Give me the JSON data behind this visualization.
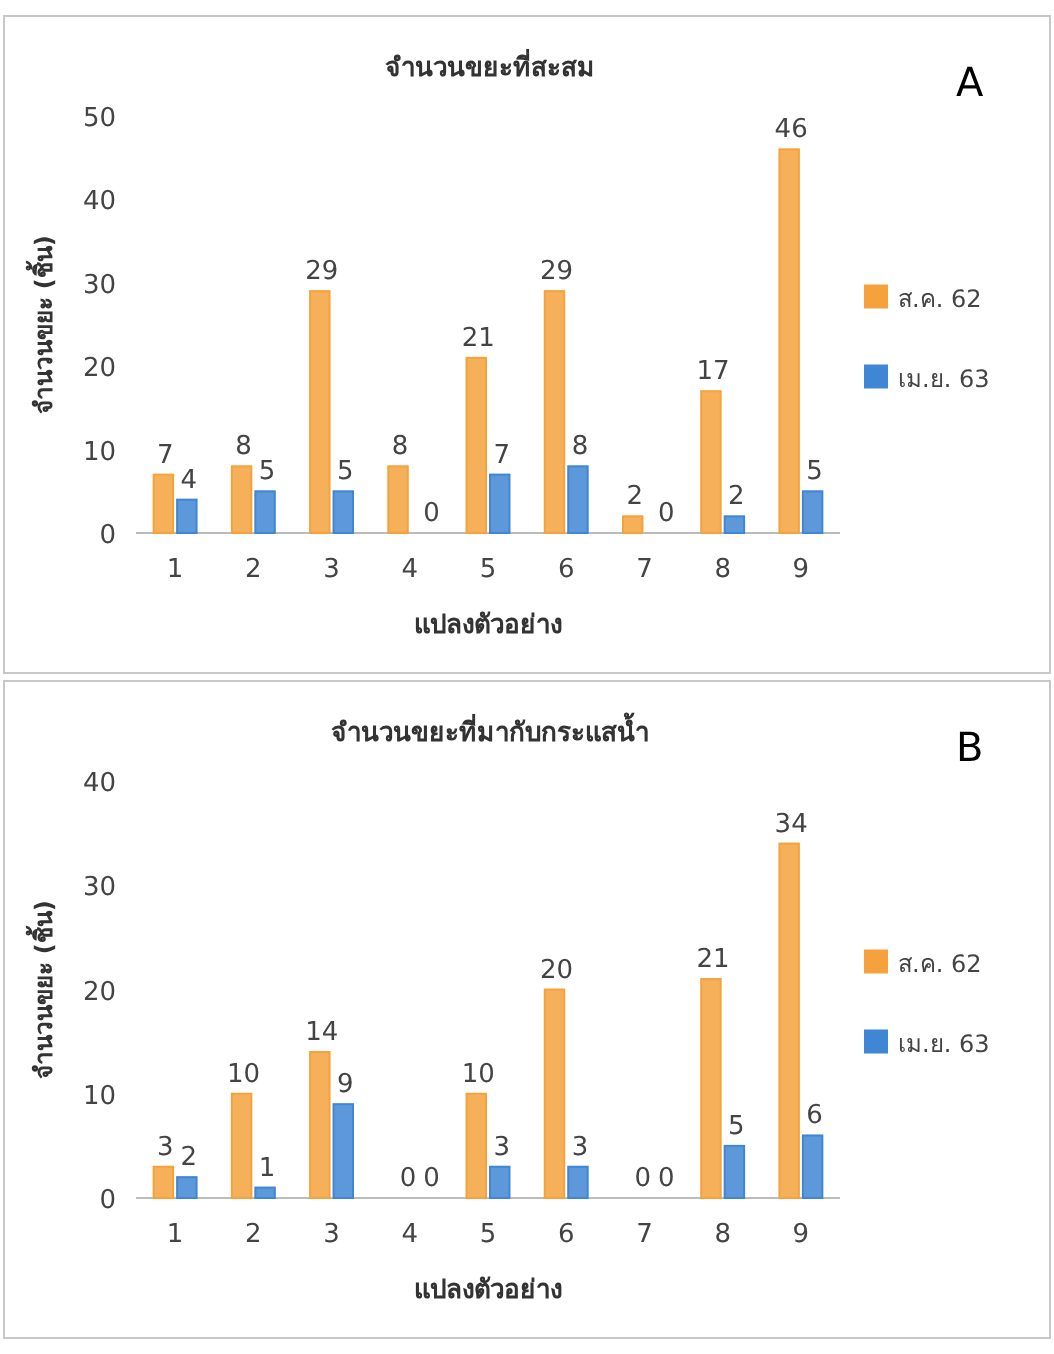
{
  "chart_data": [
    {
      "type": "bar",
      "title": "จำนวนขยะที่สะสม",
      "xlabel": "แปลงตัวอย่าง",
      "ylabel": "จำนวนขยะ (ชิ้น)",
      "annotations": [
        "A"
      ],
      "categories": [
        "1",
        "2",
        "3",
        "4",
        "5",
        "6",
        "7",
        "8",
        "9"
      ],
      "series": [
        {
          "name": "ส.ค. 62",
          "color": "#f5a23c",
          "values": [
            7,
            8,
            29,
            8,
            21,
            29,
            2,
            17,
            46
          ]
        },
        {
          "name": "เม.ย. 63",
          "color": "#3f86d4",
          "values": [
            4,
            5,
            5,
            0,
            7,
            8,
            0,
            2,
            5
          ]
        }
      ],
      "ylim": [
        0,
        50
      ],
      "yticks": [
        0,
        10,
        20,
        30,
        40,
        50
      ],
      "data_labels": true,
      "legend": "right"
    },
    {
      "type": "bar",
      "title": "จำนวนขยะที่มากับกระแสน้ำ",
      "xlabel": "แปลงตัวอย่าง",
      "ylabel": "จำนวนขยะ (ชิ้น)",
      "annotations": [
        "B"
      ],
      "categories": [
        "1",
        "2",
        "3",
        "4",
        "5",
        "6",
        "7",
        "8",
        "9"
      ],
      "series": [
        {
          "name": "ส.ค. 62",
          "color": "#f5a23c",
          "values": [
            3,
            10,
            14,
            0,
            10,
            20,
            0,
            21,
            34
          ]
        },
        {
          "name": "เม.ย. 63",
          "color": "#3f86d4",
          "values": [
            2,
            1,
            9,
            0,
            3,
            3,
            0,
            5,
            6
          ]
        }
      ],
      "ylim": [
        0,
        40
      ],
      "yticks": [
        0,
        10,
        20,
        30,
        40
      ],
      "data_labels": true,
      "legend": "right"
    }
  ]
}
